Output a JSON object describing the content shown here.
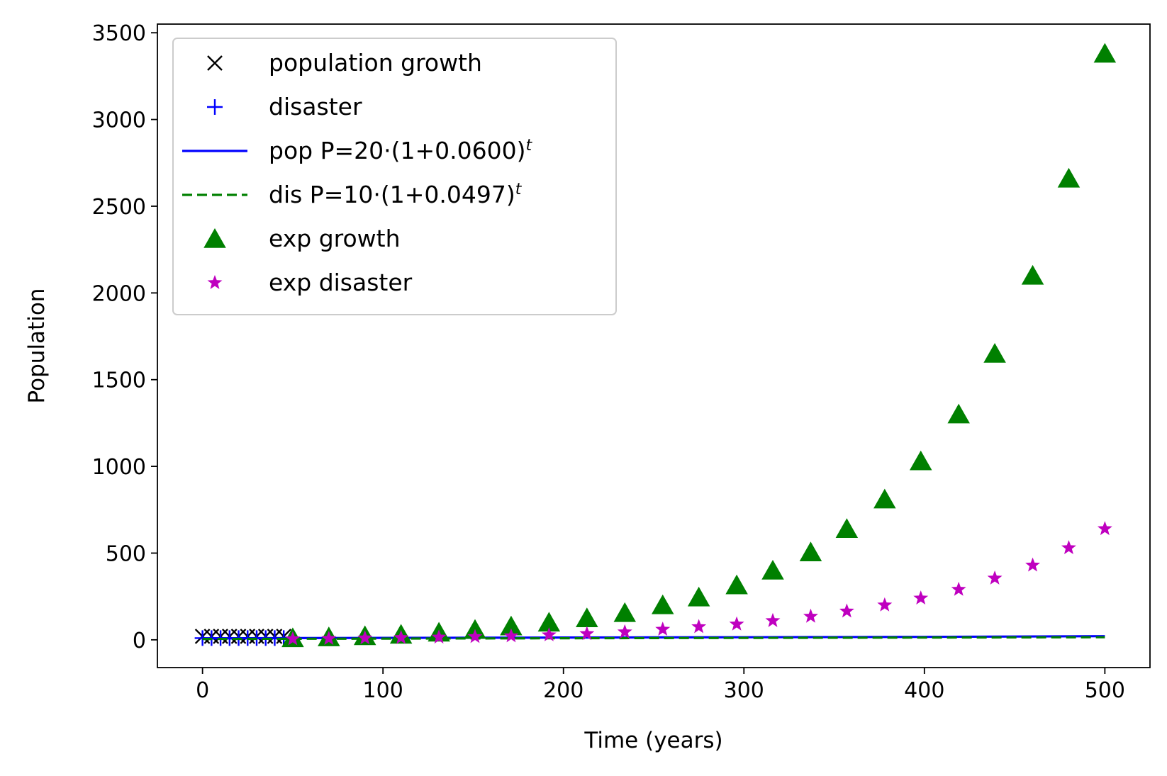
{
  "chart_data": {
    "type": "scatter",
    "title": "",
    "xlabel": "Time (years)",
    "ylabel": "Population",
    "xlim": [
      -25,
      525
    ],
    "ylim": [
      -160,
      3550
    ],
    "xticks": [
      0,
      100,
      200,
      300,
      400,
      500
    ],
    "yticks": [
      0,
      500,
      1000,
      1500,
      2000,
      2500,
      3000,
      3500
    ],
    "grid": false,
    "legend_position": "top-left",
    "series": [
      {
        "name": "population growth",
        "kind": "marker",
        "marker": "x",
        "color": "#000000",
        "x": [
          0,
          5,
          10,
          15,
          20,
          25,
          30,
          35,
          40,
          45
        ],
        "y": [
          20,
          20,
          20,
          20,
          20,
          20,
          20,
          20,
          20,
          20
        ]
      },
      {
        "name": "disaster",
        "kind": "marker",
        "marker": "+",
        "color": "#0000ff",
        "x": [
          0,
          5,
          10,
          15,
          20,
          25,
          30,
          35,
          40,
          45
        ],
        "y": [
          10,
          10,
          10,
          10,
          10,
          10,
          10,
          10,
          10,
          10
        ]
      },
      {
        "name": "pop P=20·(1+0.0600)",
        "name_sup": "t",
        "kind": "line",
        "dash": "solid",
        "color": "#0000ff",
        "x": [
          0,
          50,
          100,
          150,
          200,
          250,
          300,
          350,
          400,
          450,
          500
        ],
        "y": [
          8,
          10,
          11,
          12,
          13,
          14,
          15,
          16,
          17,
          19,
          21
        ]
      },
      {
        "name": "dis P=10·(1+0.0497)",
        "name_sup": "t",
        "kind": "line",
        "dash": "dashed",
        "color": "#008000",
        "x": [
          0,
          50,
          100,
          150,
          200,
          250,
          300,
          350,
          400,
          450,
          500
        ],
        "y": [
          5,
          6,
          7,
          8,
          9,
          10,
          11,
          12,
          13,
          14,
          15
        ]
      },
      {
        "name": "exp growth",
        "kind": "marker",
        "marker": "triangle",
        "color": "#008000",
        "x": [
          50,
          70,
          90,
          110,
          131,
          151,
          171,
          192,
          213,
          234,
          255,
          275,
          296,
          316,
          337,
          357,
          378,
          398,
          419,
          439,
          460,
          480,
          500
        ],
        "y": [
          10,
          15,
          22,
          30,
          42,
          58,
          78,
          100,
          125,
          155,
          200,
          245,
          315,
          400,
          505,
          640,
          810,
          1030,
          1300,
          1650,
          2100,
          2660,
          3380
        ]
      },
      {
        "name": "exp disaster",
        "kind": "marker",
        "marker": "star",
        "color": "#bf00bf",
        "x": [
          50,
          70,
          90,
          110,
          131,
          151,
          171,
          192,
          213,
          234,
          255,
          275,
          296,
          316,
          337,
          357,
          378,
          398,
          419,
          439,
          460,
          480,
          500
        ],
        "y": [
          5,
          7,
          10,
          12,
          15,
          18,
          22,
          28,
          35,
          45,
          60,
          75,
          90,
          110,
          135,
          165,
          200,
          240,
          290,
          355,
          430,
          530,
          640
        ]
      }
    ]
  }
}
